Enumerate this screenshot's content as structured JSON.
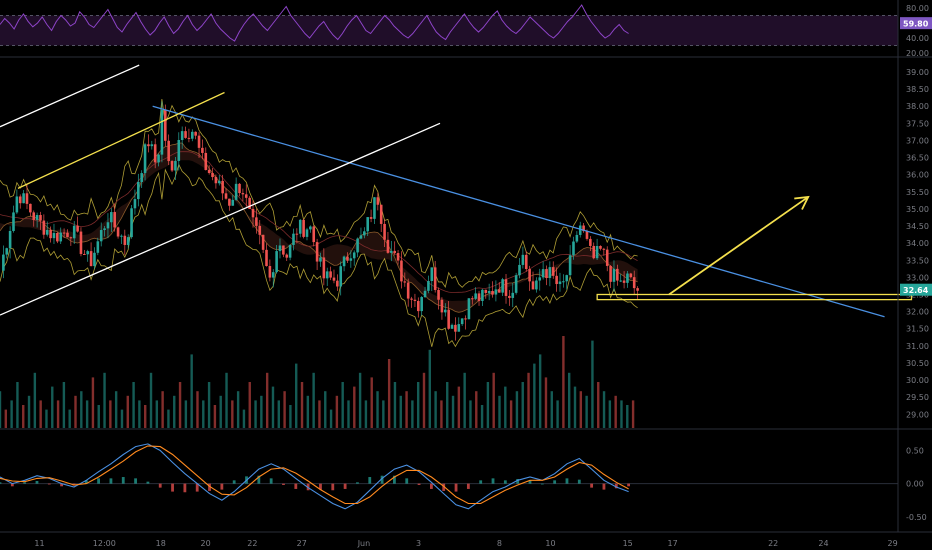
{
  "chart_data": [
    {
      "panel": "rsi",
      "type": "line",
      "y_ticks": [
        "80.00",
        "60.00",
        "40.00",
        "20.00"
      ],
      "ylim": [
        16,
        88
      ],
      "band": [
        30,
        70
      ],
      "current_label": "59.80",
      "current_value": 59.8,
      "series": [
        {
          "color": "#8e44c9",
          "values": [
            58,
            66,
            60,
            52,
            64,
            72,
            62,
            55,
            60,
            68,
            58,
            50,
            62,
            70,
            64,
            56,
            60,
            75,
            68,
            58,
            54,
            62,
            70,
            78,
            66,
            54,
            48,
            58,
            66,
            74,
            62,
            52,
            44,
            50,
            60,
            68,
            56,
            46,
            52,
            62,
            70,
            58,
            50,
            56,
            64,
            72,
            60,
            52,
            46,
            40,
            36,
            48,
            58,
            66,
            72,
            64,
            56,
            50,
            58,
            66,
            74,
            82,
            70,
            62,
            54,
            46,
            40,
            48,
            56,
            62,
            52,
            44,
            38,
            46,
            56,
            64,
            70,
            60,
            50,
            46,
            54,
            62,
            70,
            64,
            56,
            50,
            44,
            40,
            46,
            54,
            62,
            70,
            58,
            48,
            42,
            38,
            48,
            56,
            64,
            72,
            62,
            54,
            48,
            54,
            62,
            70,
            76,
            64,
            56,
            50,
            46,
            52,
            60,
            68,
            62,
            56,
            50,
            44,
            40,
            46,
            54,
            62,
            68,
            76,
            84,
            72,
            62,
            54,
            46,
            40,
            44,
            52,
            58,
            50,
            46
          ]
        }
      ]
    },
    {
      "panel": "price",
      "type": "candlestick",
      "y_ticks": [
        "39.00",
        "38.50",
        "38.00",
        "37.50",
        "37.00",
        "36.50",
        "36.00",
        "35.50",
        "35.00",
        "34.50",
        "34.00",
        "33.50",
        "33.00",
        "32.50",
        "32.00",
        "31.50",
        "31.00",
        "30.50",
        "30.00",
        "29.50",
        "29.00"
      ],
      "ylim": [
        28.6,
        39.35
      ],
      "current_label": "32.64",
      "current_value": 32.64,
      "price_path_x": [
        0.0,
        0.02,
        0.04,
        0.06,
        0.08,
        0.1,
        0.12,
        0.14,
        0.155,
        0.165,
        0.175,
        0.18,
        0.19,
        0.2,
        0.215,
        0.225,
        0.24,
        0.255,
        0.265,
        0.27,
        0.28,
        0.29,
        0.3,
        0.31,
        0.32,
        0.33,
        0.345,
        0.36,
        0.375,
        0.39,
        0.405,
        0.42,
        0.43,
        0.44,
        0.455,
        0.465,
        0.48,
        0.49,
        0.5,
        0.51,
        0.525,
        0.54,
        0.555,
        0.57,
        0.58,
        0.595,
        0.605,
        0.615,
        0.625,
        0.635,
        0.645,
        0.66,
        0.67,
        0.68,
        0.69,
        0.7,
        0.705,
        0.71
      ],
      "price_path_y": [
        33.2,
        35.5,
        34.7,
        34.2,
        34.4,
        33.4,
        34.8,
        34.0,
        36.0,
        37.0,
        36.2,
        37.9,
        35.8,
        37.3,
        37.3,
        36.4,
        35.8,
        35.2,
        35.7,
        35.6,
        34.6,
        34.0,
        32.9,
        34.1,
        33.6,
        34.4,
        34.5,
        33.0,
        32.9,
        33.8,
        34.2,
        35.4,
        34.1,
        33.5,
        32.6,
        32.2,
        33.2,
        32.4,
        31.7,
        31.6,
        32.4,
        32.4,
        32.8,
        32.6,
        33.8,
        32.5,
        33.3,
        33.0,
        32.6,
        33.4,
        34.6,
        33.5,
        33.8,
        33.1,
        32.8,
        33.0,
        32.7,
        32.64
      ],
      "volume": [
        0.4,
        0.2,
        0.3,
        0.5,
        0.25,
        0.35,
        0.6,
        0.3,
        0.2,
        0.45,
        0.3,
        0.5,
        0.2,
        0.35,
        0.4,
        0.3,
        0.55,
        0.25,
        0.6,
        0.3,
        0.4,
        0.2,
        0.35,
        0.5,
        0.3,
        0.25,
        0.6,
        0.3,
        0.4,
        0.2,
        0.35,
        0.5,
        0.3,
        0.8,
        0.4,
        0.3,
        0.5,
        0.25,
        0.35,
        0.6,
        0.3,
        0.4,
        0.2,
        0.5,
        0.3,
        0.35,
        0.6,
        0.45,
        0.3,
        0.4,
        0.25,
        0.7,
        0.5,
        0.35,
        0.6,
        0.3,
        0.4,
        0.2,
        0.35,
        0.5,
        0.3,
        0.45,
        0.6,
        0.3,
        0.55,
        0.4,
        0.3,
        0.75,
        0.5,
        0.35,
        0.4,
        0.3,
        0.5,
        0.6,
        0.85,
        0.4,
        0.3,
        0.5,
        0.35,
        0.45,
        0.6,
        0.3,
        0.4,
        0.25,
        0.5,
        0.6,
        0.35,
        0.45,
        0.3,
        0.4,
        0.5,
        0.6,
        0.7,
        0.8,
        0.55,
        0.4,
        0.3,
        1.0,
        0.6,
        0.45,
        0.4,
        0.35,
        0.95,
        0.5,
        0.4,
        0.3,
        0.35,
        0.3,
        0.25,
        0.3
      ],
      "lines": [
        {
          "kind": "trendline",
          "color": "#4a90e2",
          "p1": [
            0.17,
            38.0
          ],
          "p2": [
            0.985,
            31.85
          ]
        },
        {
          "kind": "channel",
          "color": "#ffffff",
          "p1": [
            0.0,
            37.4
          ],
          "p2": [
            0.155,
            39.2
          ]
        },
        {
          "kind": "channel",
          "color": "#f4e04d",
          "p1": [
            0.02,
            35.6
          ],
          "p2": [
            0.25,
            38.4
          ]
        },
        {
          "kind": "channel",
          "color": "#ffffff",
          "p1": [
            0.0,
            31.9
          ],
          "p2": [
            0.49,
            37.5
          ]
        }
      ],
      "support_zone": {
        "color": "#f4e04d",
        "x": [
          0.665,
          1.015
        ],
        "y": [
          32.35,
          32.5
        ]
      },
      "arrow": {
        "color": "#f4e04d",
        "from": [
          0.745,
          32.5
        ],
        "to": [
          0.9,
          35.35
        ]
      }
    },
    {
      "panel": "macd",
      "type": "line",
      "y_ticks": [
        "0.50",
        "0.00",
        "-0.50"
      ],
      "ylim": [
        -0.7,
        0.78
      ],
      "series": [
        {
          "color": "#4a90e2",
          "values": [
            0.1,
            0.0,
            0.05,
            0.12,
            0.08,
            0.0,
            -0.05,
            0.05,
            0.18,
            0.3,
            0.44,
            0.56,
            0.6,
            0.5,
            0.32,
            0.15,
            0.0,
            -0.15,
            -0.25,
            -0.12,
            0.05,
            0.22,
            0.3,
            0.22,
            0.08,
            -0.06,
            -0.18,
            -0.3,
            -0.38,
            -0.28,
            -0.1,
            0.08,
            0.22,
            0.28,
            0.18,
            0.02,
            -0.15,
            -0.32,
            -0.38,
            -0.25,
            -0.12,
            -0.05,
            0.05,
            0.1,
            0.05,
            0.15,
            0.3,
            0.38,
            0.22,
            0.05,
            -0.05,
            -0.12
          ]
        },
        {
          "color": "#ff8a1f",
          "values": [
            0.08,
            0.04,
            0.03,
            0.08,
            0.09,
            0.04,
            -0.02,
            0.0,
            0.1,
            0.22,
            0.34,
            0.48,
            0.57,
            0.56,
            0.44,
            0.28,
            0.12,
            -0.04,
            -0.16,
            -0.17,
            -0.06,
            0.1,
            0.22,
            0.24,
            0.16,
            0.04,
            -0.09,
            -0.2,
            -0.3,
            -0.3,
            -0.2,
            -0.04,
            0.1,
            0.2,
            0.2,
            0.1,
            -0.04,
            -0.2,
            -0.3,
            -0.3,
            -0.2,
            -0.1,
            -0.02,
            0.05,
            0.05,
            0.1,
            0.22,
            0.32,
            0.28,
            0.14,
            0.02,
            -0.08
          ]
        }
      ],
      "histogram": [
        0.02,
        -0.04,
        0.02,
        0.04,
        -0.01,
        -0.04,
        -0.03,
        0.05,
        0.08,
        0.08,
        0.1,
        0.08,
        0.03,
        -0.06,
        -0.12,
        -0.13,
        -0.12,
        -0.11,
        -0.09,
        0.05,
        0.11,
        0.12,
        0.08,
        -0.02,
        -0.08,
        -0.1,
        -0.09,
        -0.1,
        -0.08,
        0.02,
        0.1,
        0.12,
        0.12,
        0.08,
        -0.02,
        -0.08,
        -0.11,
        -0.12,
        -0.08,
        0.05,
        0.08,
        0.05,
        0.07,
        0.05,
        0.0,
        0.05,
        0.08,
        0.06,
        -0.06,
        -0.09,
        -0.07,
        -0.04
      ]
    }
  ],
  "x_axis": {
    "ticks": [
      {
        "label": "11",
        "pos": 0.045
      },
      {
        "label": "12:00",
        "pos": 0.11
      },
      {
        "label": "18",
        "pos": 0.18
      },
      {
        "label": "20",
        "pos": 0.23
      },
      {
        "label": "22",
        "pos": 0.282
      },
      {
        "label": "27",
        "pos": 0.337
      },
      {
        "label": "Jun",
        "pos": 0.405
      },
      {
        "label": "3",
        "pos": 0.47
      },
      {
        "label": "8",
        "pos": 0.56
      },
      {
        "label": "10",
        "pos": 0.614
      },
      {
        "label": "15",
        "pos": 0.7
      },
      {
        "label": "17",
        "pos": 0.75
      },
      {
        "label": "22",
        "pos": 0.862
      },
      {
        "label": "24",
        "pos": 0.918
      },
      {
        "label": "29",
        "pos": 0.995
      }
    ]
  },
  "colors": {
    "background": "#000000",
    "up": "#26a69a",
    "down": "#ef5350",
    "axis_text": "#7b7d85",
    "rsi_band": "#3a1a4a",
    "last_price_badge": "#26a69a"
  }
}
